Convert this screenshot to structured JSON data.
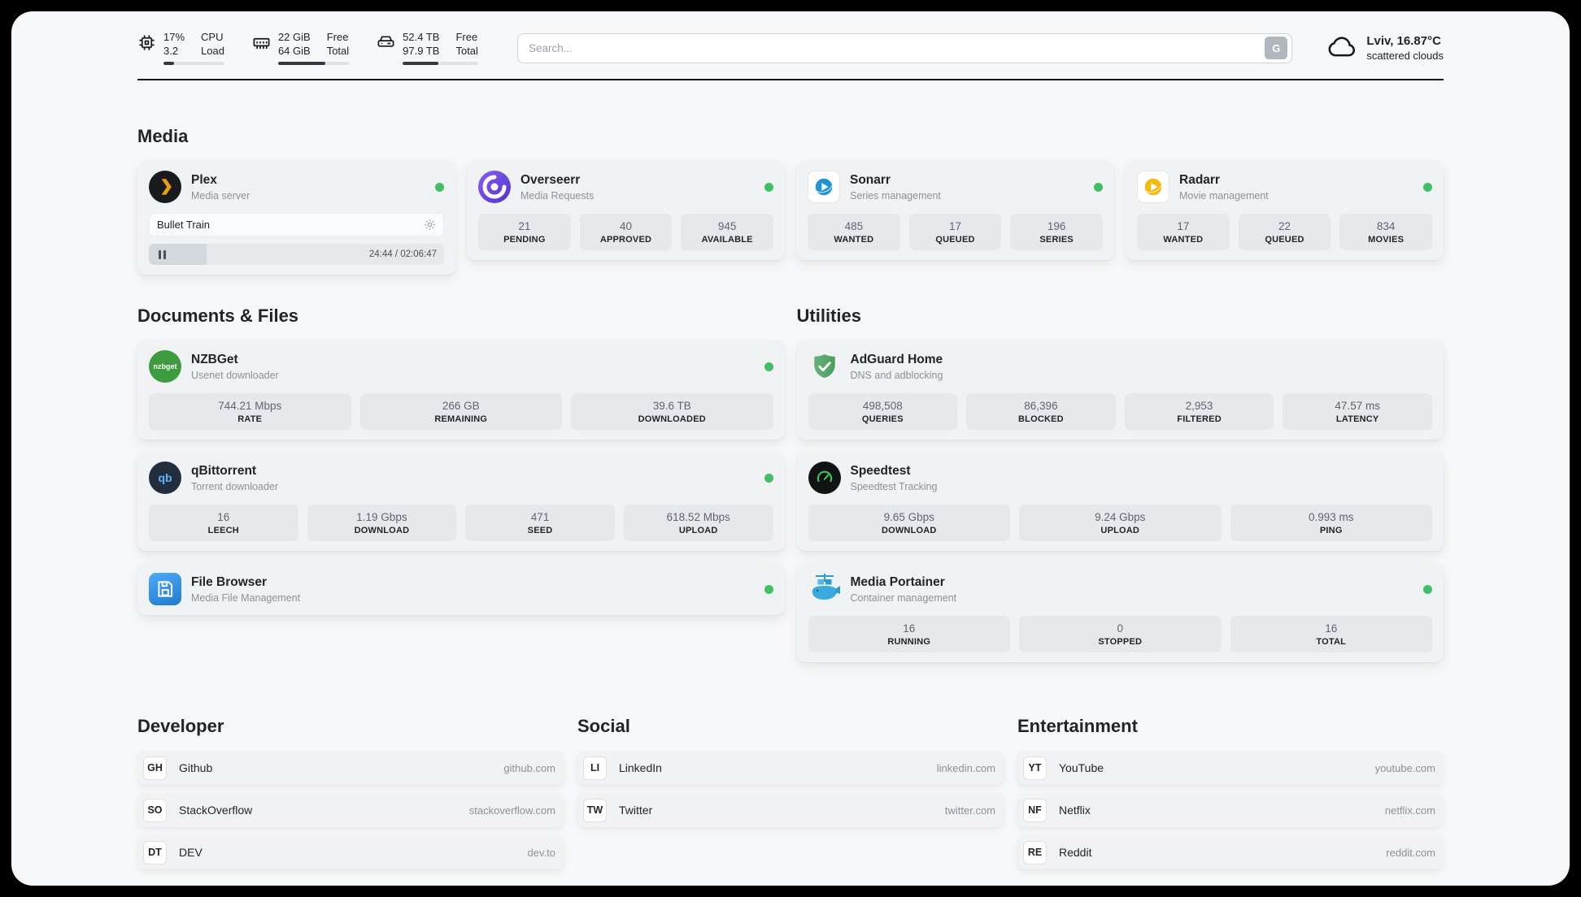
{
  "topbar": {
    "cpu": {
      "usage": "17%",
      "load": "3.2",
      "usage_label": "CPU",
      "load_label": "Load",
      "bar_percent": 17
    },
    "ram": {
      "free": "22 GiB",
      "total": "64 GiB",
      "free_label": "Free",
      "total_label": "Total",
      "bar_percent": 66
    },
    "disk": {
      "free": "52.4 TB",
      "total": "97.9 TB",
      "free_label": "Free",
      "total_label": "Total",
      "bar_percent": 47
    },
    "search": {
      "placeholder": "Search...",
      "button_label": "G"
    },
    "weather": {
      "location": "Lviv, 16.87°C",
      "condition": "scattered clouds"
    }
  },
  "sections": {
    "media": {
      "title": "Media",
      "cards": [
        {
          "name": "Plex",
          "subtitle": "Media server",
          "status": "online",
          "player": {
            "track": "Bullet Train",
            "time": "24:44 / 02:06:47",
            "progress_percent": 19.5
          }
        },
        {
          "name": "Overseerr",
          "subtitle": "Media Requests",
          "status": "online",
          "stats": [
            {
              "value": "21",
              "label": "PENDING"
            },
            {
              "value": "40",
              "label": "APPROVED"
            },
            {
              "value": "945",
              "label": "AVAILABLE"
            }
          ]
        },
        {
          "name": "Sonarr",
          "subtitle": "Series management",
          "status": "online",
          "stats": [
            {
              "value": "485",
              "label": "WANTED"
            },
            {
              "value": "17",
              "label": "QUEUED"
            },
            {
              "value": "196",
              "label": "SERIES"
            }
          ]
        },
        {
          "name": "Radarr",
          "subtitle": "Movie management",
          "status": "online",
          "stats": [
            {
              "value": "17",
              "label": "WANTED"
            },
            {
              "value": "22",
              "label": "QUEUED"
            },
            {
              "value": "834",
              "label": "MOVIES"
            }
          ]
        }
      ]
    },
    "documents": {
      "title": "Documents & Files",
      "cards": [
        {
          "name": "NZBGet",
          "subtitle": "Usenet downloader",
          "status": "online",
          "icon_text": "nzbget",
          "stats": [
            {
              "value": "744.21 Mbps",
              "label": "RATE"
            },
            {
              "value": "266 GB",
              "label": "REMAINING"
            },
            {
              "value": "39.6 TB",
              "label": "DOWNLOADED"
            }
          ]
        },
        {
          "name": "qBittorrent",
          "subtitle": "Torrent downloader",
          "status": "online",
          "icon_text": "qb",
          "stats": [
            {
              "value": "16",
              "label": "LEECH"
            },
            {
              "value": "1.19 Gbps",
              "label": "DOWNLOAD"
            },
            {
              "value": "471",
              "label": "SEED"
            },
            {
              "value": "618.52 Mbps",
              "label": "UPLOAD"
            }
          ]
        },
        {
          "name": "File Browser",
          "subtitle": "Media File Management",
          "status": "online"
        }
      ]
    },
    "utilities": {
      "title": "Utilities",
      "cards": [
        {
          "name": "AdGuard Home",
          "subtitle": "DNS and adblocking",
          "stats": [
            {
              "value": "498,508",
              "label": "QUERIES"
            },
            {
              "value": "86,396",
              "label": "BLOCKED"
            },
            {
              "value": "2,953",
              "label": "FILTERED"
            },
            {
              "value": "47.57 ms",
              "label": "LATENCY"
            }
          ]
        },
        {
          "name": "Speedtest",
          "subtitle": "Speedtest Tracking",
          "stats": [
            {
              "value": "9.65 Gbps",
              "label": "DOWNLOAD"
            },
            {
              "value": "9.24 Gbps",
              "label": "UPLOAD"
            },
            {
              "value": "0.993 ms",
              "label": "PING"
            }
          ]
        },
        {
          "name": "Media Portainer",
          "subtitle": "Container management",
          "status": "online",
          "stats": [
            {
              "value": "16",
              "label": "RUNNING"
            },
            {
              "value": "0",
              "label": "STOPPED"
            },
            {
              "value": "16",
              "label": "TOTAL"
            }
          ]
        }
      ]
    },
    "developer": {
      "title": "Developer",
      "links": [
        {
          "badge": "GH",
          "name": "Github",
          "url": "github.com"
        },
        {
          "badge": "SO",
          "name": "StackOverflow",
          "url": "stackoverflow.com"
        },
        {
          "badge": "DT",
          "name": "DEV",
          "url": "dev.to"
        }
      ]
    },
    "social": {
      "title": "Social",
      "links": [
        {
          "badge": "LI",
          "name": "LinkedIn",
          "url": "linkedin.com"
        },
        {
          "badge": "TW",
          "name": "Twitter",
          "url": "twitter.com"
        }
      ]
    },
    "entertainment": {
      "title": "Entertainment",
      "links": [
        {
          "badge": "YT",
          "name": "YouTube",
          "url": "youtube.com"
        },
        {
          "badge": "NF",
          "name": "Netflix",
          "url": "netflix.com"
        },
        {
          "badge": "RE",
          "name": "Reddit",
          "url": "reddit.com"
        }
      ]
    }
  },
  "colors": {
    "status_online": "#3fc065",
    "plex_yellow": "#e5a00d",
    "overseerr_purple": "#6d4de0",
    "sonarr_blue": "#1f96d3",
    "radarr_amber": "#f5b80c",
    "nzbget_green": "#3d9c40",
    "qbittorrent_navy": "#222e3e",
    "filebrowser_blue": "#2379cc",
    "adguard_green": "#67b279",
    "speedtest_dark": "#101214",
    "portainer_blue": "#3aa9dd"
  }
}
